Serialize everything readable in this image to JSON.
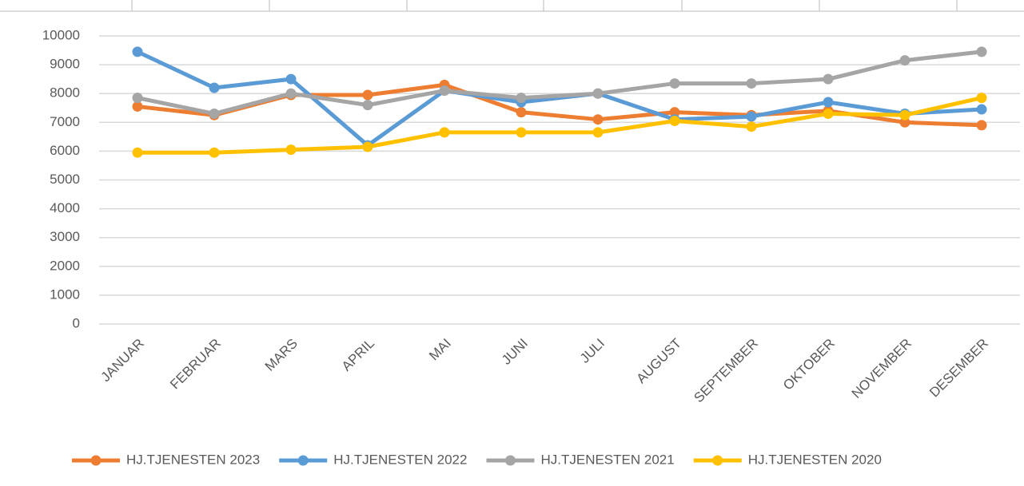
{
  "chart_data": {
    "type": "line",
    "categories": [
      "JANUAR",
      "FEBRUAR",
      "MARS",
      "APRIL",
      "MAI",
      "JUNI",
      "JULI",
      "AUGUST",
      "SEPTEMBER",
      "OKTOBER",
      "NOVEMBER",
      "DESEMBER"
    ],
    "series": [
      {
        "name": "HJ.TJENESTEN 2023",
        "color": "#ed7d31",
        "values": [
          7550,
          7250,
          7950,
          7950,
          8300,
          7350,
          7100,
          7350,
          7250,
          7400,
          7000,
          6900
        ]
      },
      {
        "name": "HJ.TJENESTEN 2022",
        "color": "#5b9bd5",
        "values": [
          9450,
          8200,
          8500,
          6200,
          8100,
          7700,
          8000,
          7100,
          7200,
          7700,
          7300,
          7450
        ]
      },
      {
        "name": "HJ.TJENESTEN 2021",
        "color": "#a5a5a5",
        "values": [
          7850,
          7300,
          8000,
          7600,
          8100,
          7850,
          8000,
          8350,
          8350,
          8500,
          9150,
          9450
        ]
      },
      {
        "name": "HJ.TJENESTEN 2020",
        "color": "#ffc000",
        "values": [
          5950,
          5950,
          6050,
          6150,
          6650,
          6650,
          6650,
          7050,
          6850,
          7300,
          7250,
          7850
        ]
      }
    ],
    "ylim": [
      0,
      10000
    ],
    "yticks": [
      0,
      1000,
      2000,
      3000,
      4000,
      5000,
      6000,
      7000,
      8000,
      9000,
      10000
    ],
    "grid": true,
    "legend": "bottom"
  }
}
